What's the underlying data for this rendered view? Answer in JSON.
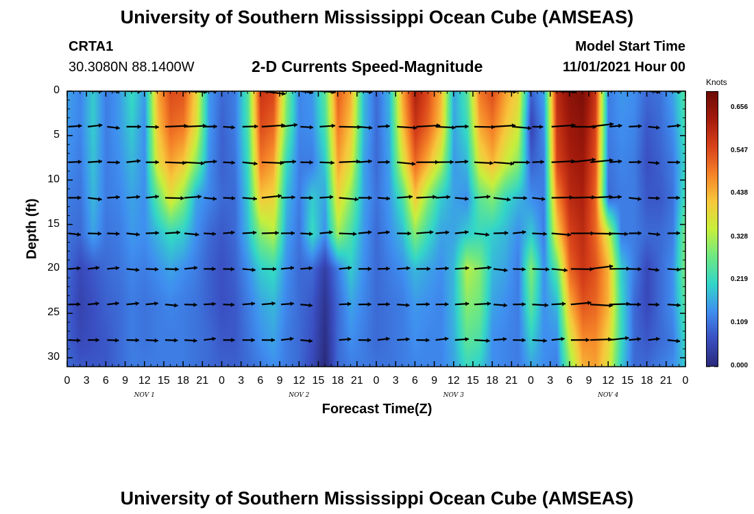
{
  "header": {
    "title": "University of Southern Mississippi Ocean Cube (AMSEAS)",
    "station": "CRTA1",
    "coords": "30.3080N  88.1400W",
    "subtitle": "2-D Currents Speed-Magnitude",
    "model_label": "Model Start Time",
    "model_time": "11/01/2021 Hour 00"
  },
  "footer_title": "University of Southern Mississippi Ocean Cube (AMSEAS)",
  "chart_data": {
    "type": "heatmap",
    "title": "2-D Currents Speed-Magnitude",
    "xlabel": "Forecast Time(Z)",
    "ylabel": "Depth (ft)",
    "x_range_hours": [
      0,
      96
    ],
    "x_tick_labels": [
      "0",
      "3",
      "6",
      "9",
      "12",
      "15",
      "18",
      "21",
      "0",
      "3",
      "6",
      "9",
      "12",
      "15",
      "18",
      "21",
      "0",
      "3",
      "6",
      "9",
      "12",
      "15",
      "18",
      "21",
      "0",
      "3",
      "6",
      "9",
      "12",
      "15",
      "18",
      "21",
      "0"
    ],
    "day_labels": [
      {
        "label": "NOV 1",
        "hour": 12
      },
      {
        "label": "NOV 2",
        "hour": 36
      },
      {
        "label": "NOV 3",
        "hour": 60
      },
      {
        "label": "NOV 4",
        "hour": 84
      }
    ],
    "ylim": [
      0,
      31
    ],
    "y_ticks": [
      "0",
      "5",
      "10",
      "15",
      "20",
      "25",
      "30"
    ],
    "colorbar": {
      "unit": "Knots",
      "min": 0.0,
      "max": 0.7,
      "labels": [
        "0.656",
        "0.547",
        "0.438",
        "0.328",
        "0.219",
        "0.109",
        "0.000"
      ],
      "colors": [
        "#2a2a7a",
        "#3a4fc2",
        "#3f8ff0",
        "#33d6c8",
        "#6ee882",
        "#c8ef3c",
        "#f7c83c",
        "#f58228",
        "#d8421a",
        "#a41b0c",
        "#6c0a05"
      ]
    },
    "vector_depths_ft": [
      0,
      4,
      8,
      12,
      16,
      20,
      24,
      28
    ],
    "speed_time_hours": [
      0,
      2,
      4,
      6,
      8,
      10,
      12,
      14,
      16,
      18,
      20,
      22,
      24,
      26,
      28,
      30,
      32,
      34,
      36,
      38,
      40,
      42,
      44,
      46,
      48,
      50,
      52,
      54,
      56,
      58,
      60,
      62,
      64,
      66,
      68,
      70,
      72,
      74,
      76,
      78,
      80,
      82,
      84,
      86,
      88,
      90,
      92,
      94,
      96
    ],
    "speed_depth_ft": [
      0,
      4,
      8,
      12,
      16,
      20,
      24,
      28,
      31
    ],
    "speed_knots": [
      [
        0.16,
        0.13,
        0.2,
        0.12,
        0.15,
        0.22,
        0.15,
        0.45,
        0.55,
        0.54,
        0.4,
        0.15,
        0.1,
        0.12,
        0.25,
        0.58,
        0.56,
        0.3,
        0.13,
        0.15,
        0.26,
        0.53,
        0.45,
        0.18,
        0.1,
        0.18,
        0.45,
        0.62,
        0.55,
        0.44,
        0.16,
        0.25,
        0.5,
        0.55,
        0.46,
        0.4,
        0.09,
        0.16,
        0.6,
        0.66,
        0.68,
        0.58,
        0.12,
        0.15,
        0.14,
        0.1,
        0.11,
        0.16,
        0.26
      ],
      [
        0.15,
        0.13,
        0.2,
        0.12,
        0.15,
        0.2,
        0.14,
        0.42,
        0.52,
        0.5,
        0.38,
        0.15,
        0.09,
        0.12,
        0.24,
        0.55,
        0.52,
        0.28,
        0.13,
        0.14,
        0.24,
        0.5,
        0.42,
        0.18,
        0.1,
        0.17,
        0.42,
        0.58,
        0.52,
        0.42,
        0.16,
        0.22,
        0.45,
        0.5,
        0.42,
        0.36,
        0.05,
        0.14,
        0.58,
        0.64,
        0.66,
        0.56,
        0.12,
        0.14,
        0.13,
        0.08,
        0.1,
        0.14,
        0.24
      ],
      [
        0.14,
        0.12,
        0.19,
        0.12,
        0.14,
        0.18,
        0.14,
        0.38,
        0.46,
        0.42,
        0.3,
        0.14,
        0.09,
        0.11,
        0.22,
        0.5,
        0.46,
        0.22,
        0.12,
        0.12,
        0.2,
        0.46,
        0.38,
        0.16,
        0.1,
        0.16,
        0.36,
        0.52,
        0.44,
        0.34,
        0.15,
        0.18,
        0.38,
        0.44,
        0.36,
        0.3,
        0.09,
        0.12,
        0.56,
        0.62,
        0.64,
        0.54,
        0.11,
        0.13,
        0.12,
        0.07,
        0.09,
        0.12,
        0.22
      ],
      [
        0.12,
        0.11,
        0.18,
        0.12,
        0.13,
        0.16,
        0.14,
        0.26,
        0.38,
        0.3,
        0.16,
        0.13,
        0.1,
        0.1,
        0.2,
        0.42,
        0.4,
        0.18,
        0.12,
        0.2,
        0.16,
        0.4,
        0.3,
        0.16,
        0.11,
        0.15,
        0.24,
        0.42,
        0.3,
        0.2,
        0.16,
        0.14,
        0.26,
        0.3,
        0.22,
        0.18,
        0.14,
        0.12,
        0.48,
        0.6,
        0.62,
        0.52,
        0.1,
        0.12,
        0.12,
        0.08,
        0.08,
        0.11,
        0.24
      ],
      [
        0.11,
        0.1,
        0.16,
        0.11,
        0.12,
        0.15,
        0.14,
        0.18,
        0.22,
        0.2,
        0.14,
        0.1,
        0.08,
        0.1,
        0.18,
        0.3,
        0.34,
        0.16,
        0.11,
        0.22,
        0.14,
        0.32,
        0.24,
        0.15,
        0.1,
        0.14,
        0.18,
        0.3,
        0.22,
        0.16,
        0.16,
        0.2,
        0.22,
        0.2,
        0.18,
        0.14,
        0.2,
        0.12,
        0.4,
        0.56,
        0.6,
        0.52,
        0.36,
        0.12,
        0.12,
        0.1,
        0.1,
        0.12,
        0.3
      ],
      [
        0.1,
        0.06,
        0.08,
        0.1,
        0.11,
        0.13,
        0.12,
        0.14,
        0.16,
        0.14,
        0.12,
        0.09,
        0.07,
        0.09,
        0.14,
        0.2,
        0.22,
        0.14,
        0.1,
        0.1,
        0.04,
        0.12,
        0.2,
        0.14,
        0.1,
        0.12,
        0.14,
        0.18,
        0.16,
        0.14,
        0.18,
        0.34,
        0.3,
        0.18,
        0.16,
        0.12,
        0.3,
        0.14,
        0.26,
        0.52,
        0.58,
        0.54,
        0.44,
        0.2,
        0.12,
        0.06,
        0.1,
        0.14,
        0.3
      ],
      [
        0.09,
        0.05,
        0.07,
        0.09,
        0.1,
        0.12,
        0.11,
        0.12,
        0.13,
        0.12,
        0.11,
        0.09,
        0.07,
        0.08,
        0.12,
        0.16,
        0.18,
        0.13,
        0.1,
        0.08,
        0.02,
        0.1,
        0.16,
        0.13,
        0.1,
        0.11,
        0.12,
        0.15,
        0.14,
        0.13,
        0.18,
        0.3,
        0.28,
        0.16,
        0.14,
        0.12,
        0.26,
        0.14,
        0.18,
        0.44,
        0.54,
        0.52,
        0.44,
        0.22,
        0.1,
        0.06,
        0.1,
        0.14,
        0.26
      ],
      [
        0.09,
        0.06,
        0.07,
        0.08,
        0.1,
        0.12,
        0.11,
        0.12,
        0.12,
        0.12,
        0.11,
        0.1,
        0.08,
        0.08,
        0.11,
        0.14,
        0.16,
        0.12,
        0.1,
        0.07,
        0.01,
        0.1,
        0.14,
        0.12,
        0.1,
        0.11,
        0.12,
        0.14,
        0.13,
        0.13,
        0.17,
        0.26,
        0.24,
        0.14,
        0.13,
        0.12,
        0.2,
        0.14,
        0.14,
        0.36,
        0.48,
        0.48,
        0.4,
        0.22,
        0.1,
        0.08,
        0.1,
        0.12,
        0.22
      ],
      [
        0.1,
        0.08,
        0.08,
        0.08,
        0.1,
        0.12,
        0.12,
        0.12,
        0.12,
        0.12,
        0.11,
        0.1,
        0.09,
        0.09,
        0.1,
        0.12,
        0.14,
        0.12,
        0.1,
        0.06,
        0.0,
        0.1,
        0.12,
        0.12,
        0.11,
        0.11,
        0.12,
        0.13,
        0.13,
        0.13,
        0.16,
        0.22,
        0.2,
        0.14,
        0.13,
        0.12,
        0.16,
        0.14,
        0.12,
        0.3,
        0.44,
        0.46,
        0.38,
        0.2,
        0.1,
        0.1,
        0.12,
        0.14,
        0.2
      ]
    ]
  }
}
